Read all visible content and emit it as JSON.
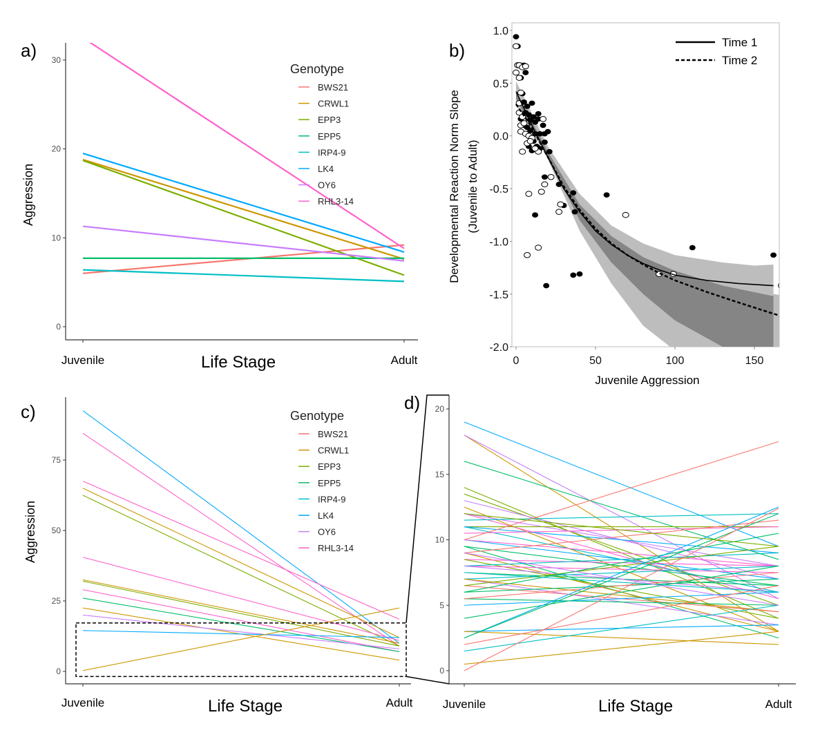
{
  "palette": [
    "#F8766D",
    "#CD9600",
    "#7CAE00",
    "#00BE67",
    "#00BFC4",
    "#00A9FF",
    "#C77CFF",
    "#FF61CC"
  ],
  "chart_data": [
    {
      "panel_label": "a)",
      "type": "line",
      "xlabel": "Life Stage",
      "ylabel": "Aggression",
      "categories": [
        "Juvenile",
        "Adult"
      ],
      "yticks": [
        0,
        10,
        20,
        30
      ],
      "ylim": [
        -1.2,
        31.5
      ],
      "legend_title": "Genotype",
      "legend_position": "top-right",
      "series": [
        {
          "name": "BWS21",
          "values": [
            6.0,
            9.2
          ]
        },
        {
          "name": "CRWL1",
          "values": [
            18.8,
            7.6
          ]
        },
        {
          "name": "EPP3",
          "values": [
            18.7,
            5.8
          ]
        },
        {
          "name": "EPP5",
          "values": [
            7.7,
            7.7
          ]
        },
        {
          "name": "IRP4-9",
          "values": [
            6.4,
            5.1
          ]
        },
        {
          "name": "LK4",
          "values": [
            19.5,
            8.4
          ]
        },
        {
          "name": "OY6",
          "values": [
            11.3,
            7.4
          ]
        },
        {
          "name": "RHL3-14",
          "values": [
            32.5,
            8.8
          ]
        }
      ]
    },
    {
      "panel_label": "b)",
      "type": "scatter",
      "xlabel": "Juvenile Aggression",
      "ylabel": [
        "Developmental Reaction Norm Slope",
        "(Juvenile to Adult)"
      ],
      "xticks": [
        0,
        50,
        100,
        150
      ],
      "yticks": [
        1.0,
        0.5,
        0.0,
        -0.5,
        -1.0,
        -1.5,
        -2.0
      ],
      "xlim": [
        -3,
        165
      ],
      "ylim": [
        -2.0,
        1.07
      ],
      "legend_position": "top-right",
      "legend": [
        {
          "name": "Time 1",
          "style": "solid"
        },
        {
          "name": "Time 2",
          "style": "dashed"
        }
      ],
      "time1_points": [
        [
          0,
          0.94
        ],
        [
          0,
          0.85
        ],
        [
          1,
          0.85
        ],
        [
          1,
          0.67
        ],
        [
          3,
          0.67
        ],
        [
          5,
          0.67
        ],
        [
          3,
          0.55
        ],
        [
          6,
          0.6
        ],
        [
          4,
          0.4
        ],
        [
          5,
          0.32
        ],
        [
          7,
          0.28
        ],
        [
          10,
          0.31
        ],
        [
          6,
          0.22
        ],
        [
          8,
          0.2
        ],
        [
          9,
          0.15
        ],
        [
          11,
          0.18
        ],
        [
          12,
          0.13
        ],
        [
          14,
          0.21
        ],
        [
          14,
          0.16
        ],
        [
          3,
          0.16
        ],
        [
          5,
          0.1
        ],
        [
          7,
          0.08
        ],
        [
          9,
          0.05
        ],
        [
          12,
          0.02
        ],
        [
          15,
          0.02
        ],
        [
          18,
          0.02
        ],
        [
          17,
          0.1
        ],
        [
          20,
          0.04
        ],
        [
          11,
          -0.05
        ],
        [
          13,
          -0.1
        ],
        [
          15,
          -0.12
        ],
        [
          18,
          -0.06
        ],
        [
          21,
          -0.15
        ],
        [
          10,
          -0.14
        ],
        [
          8,
          -0.1
        ],
        [
          18,
          -0.39
        ],
        [
          27,
          -0.46
        ],
        [
          36,
          -0.54
        ],
        [
          57,
          -0.56
        ],
        [
          30,
          -0.66
        ],
        [
          37,
          -0.72
        ],
        [
          12,
          -0.75
        ],
        [
          111,
          -1.06
        ],
        [
          162,
          -1.13
        ],
        [
          36,
          -1.32
        ],
        [
          40,
          -1.31
        ],
        [
          19,
          -1.42
        ]
      ],
      "time2_points": [
        [
          0,
          0.85
        ],
        [
          0,
          0.6
        ],
        [
          1,
          0.67
        ],
        [
          2,
          0.67
        ],
        [
          4,
          0.65
        ],
        [
          6,
          0.66
        ],
        [
          2,
          0.55
        ],
        [
          3,
          0.41
        ],
        [
          2,
          0.31
        ],
        [
          2,
          0.22
        ],
        [
          4,
          0.18
        ],
        [
          3,
          0.1
        ],
        [
          5,
          0.12
        ],
        [
          3,
          0.04
        ],
        [
          6,
          0.02
        ],
        [
          8,
          0.0
        ],
        [
          10,
          -0.02
        ],
        [
          7,
          -0.07
        ],
        [
          9,
          -0.05
        ],
        [
          4,
          -0.15
        ],
        [
          14,
          -0.15
        ],
        [
          17,
          0.16
        ],
        [
          12,
          -0.12
        ],
        [
          22,
          -0.39
        ],
        [
          18,
          -0.46
        ],
        [
          8,
          -0.55
        ],
        [
          16,
          -0.53
        ],
        [
          28,
          -0.65
        ],
        [
          27,
          -0.72
        ],
        [
          69,
          -0.75
        ],
        [
          14,
          -1.06
        ],
        [
          7,
          -1.13
        ],
        [
          90,
          -1.31
        ],
        [
          99,
          -1.31
        ],
        [
          167,
          -1.42
        ]
      ],
      "time1_fit": [
        [
          0,
          0.42
        ],
        [
          10,
          0.1
        ],
        [
          20,
          -0.2
        ],
        [
          30,
          -0.5
        ],
        [
          40,
          -0.72
        ],
        [
          50,
          -0.9
        ],
        [
          60,
          -1.03
        ],
        [
          70,
          -1.13
        ],
        [
          80,
          -1.21
        ],
        [
          90,
          -1.27
        ],
        [
          100,
          -1.32
        ],
        [
          120,
          -1.37
        ],
        [
          140,
          -1.4
        ],
        [
          162,
          -1.42
        ]
      ],
      "time2_fit": [
        [
          0,
          0.3
        ],
        [
          10,
          0.08
        ],
        [
          20,
          -0.2
        ],
        [
          30,
          -0.48
        ],
        [
          40,
          -0.7
        ],
        [
          50,
          -0.88
        ],
        [
          60,
          -1.02
        ],
        [
          70,
          -1.13
        ],
        [
          80,
          -1.22
        ],
        [
          90,
          -1.3
        ],
        [
          100,
          -1.37
        ],
        [
          120,
          -1.48
        ],
        [
          140,
          -1.58
        ],
        [
          167,
          -1.71
        ]
      ],
      "band_outer_upper": [
        [
          0,
          0.52
        ],
        [
          20,
          -0.1
        ],
        [
          40,
          -0.55
        ],
        [
          60,
          -0.85
        ],
        [
          80,
          -1.02
        ],
        [
          100,
          -1.13
        ],
        [
          130,
          -1.2
        ],
        [
          150,
          -1.23
        ],
        [
          162,
          -1.22
        ],
        [
          162,
          -1.5
        ],
        [
          167,
          -1.51
        ],
        [
          167,
          -2.0
        ]
      ],
      "band_outer_lower": [
        [
          0,
          0.3
        ],
        [
          20,
          -0.22
        ],
        [
          40,
          -0.9
        ],
        [
          60,
          -1.4
        ],
        [
          80,
          -1.8
        ],
        [
          97,
          -2.0
        ]
      ],
      "band_inner_upper": [
        [
          0,
          0.42
        ],
        [
          20,
          -0.15
        ],
        [
          40,
          -0.65
        ],
        [
          60,
          -0.95
        ],
        [
          80,
          -1.15
        ],
        [
          100,
          -1.28
        ],
        [
          130,
          -1.42
        ],
        [
          162,
          -1.52
        ],
        [
          162,
          -2.0
        ]
      ],
      "band_inner_lower": [
        [
          0,
          0.35
        ],
        [
          20,
          -0.2
        ],
        [
          40,
          -0.8
        ],
        [
          60,
          -1.2
        ],
        [
          80,
          -1.5
        ],
        [
          100,
          -1.75
        ],
        [
          130,
          -2.0
        ]
      ]
    },
    {
      "panel_label": "c)",
      "type": "line",
      "xlabel": "Life Stage",
      "ylabel": "Aggression",
      "categories": [
        "Juvenile",
        "Adult"
      ],
      "yticks": [
        0,
        25,
        50,
        75
      ],
      "ylim": [
        -4,
        97
      ],
      "legend_title": "Genotype",
      "legend_position": "top-right",
      "legend": [
        "BWS21",
        "CRWL1",
        "EPP3",
        "EPP5",
        "IRP4-9",
        "LK4",
        "OY6",
        "RHL3-14"
      ],
      "zoom_box": [
        -1.8,
        17.2
      ],
      "lines": [
        [
          92.5,
          10,
          5
        ],
        [
          84.5,
          9,
          7
        ],
        [
          67.5,
          18.5,
          7
        ],
        [
          65,
          12,
          1
        ],
        [
          62.5,
          9,
          2
        ],
        [
          40.5,
          11,
          7
        ],
        [
          32.5,
          10,
          1
        ],
        [
          32,
          9,
          2
        ],
        [
          29,
          7,
          7
        ],
        [
          26,
          7,
          3
        ],
        [
          22.5,
          4,
          1
        ],
        [
          20,
          8,
          6
        ],
        [
          14.5,
          12,
          5
        ],
        [
          0.3,
          22.5,
          1
        ]
      ]
    },
    {
      "panel_label": "d)",
      "type": "line",
      "xlabel": "Life Stage",
      "categories": [
        "Juvenile",
        "Adult"
      ],
      "yticks": [
        0,
        5,
        10,
        15,
        20
      ],
      "ylim": [
        -1,
        21
      ],
      "lines": [
        [
          19,
          9.5,
          5
        ],
        [
          18,
          3,
          1
        ],
        [
          18,
          5.5,
          6
        ],
        [
          16,
          8.5,
          3
        ],
        [
          14,
          4,
          2
        ],
        [
          13.5,
          5,
          2
        ],
        [
          13,
          7,
          6
        ],
        [
          12.5,
          3,
          1
        ],
        [
          12,
          5.5,
          7
        ],
        [
          12,
          8,
          6
        ],
        [
          11.5,
          12,
          4
        ],
        [
          11,
          11,
          2
        ],
        [
          11,
          6,
          4
        ],
        [
          11,
          9,
          5
        ],
        [
          10.5,
          11,
          7
        ],
        [
          10,
          17.5,
          0
        ],
        [
          10,
          7,
          5
        ],
        [
          10,
          8,
          7
        ],
        [
          9.5,
          6.5,
          3
        ],
        [
          9.5,
          2.5,
          3
        ],
        [
          9,
          11.5,
          0
        ],
        [
          9,
          3,
          1
        ],
        [
          8.5,
          8,
          7
        ],
        [
          8.5,
          4,
          2
        ],
        [
          8,
          7.5,
          7
        ],
        [
          8,
          9,
          4
        ],
        [
          8,
          6,
          6
        ],
        [
          7.5,
          6.5,
          3
        ],
        [
          7,
          3.5,
          6
        ],
        [
          7,
          8,
          4
        ],
        [
          7,
          4.5,
          1
        ],
        [
          6.5,
          4.5,
          0
        ],
        [
          6.5,
          9.5,
          2
        ],
        [
          6,
          7,
          3
        ],
        [
          6,
          10.5,
          3
        ],
        [
          5.5,
          5,
          3
        ],
        [
          5.5,
          7.5,
          0
        ],
        [
          5,
          6,
          5
        ],
        [
          4,
          8,
          3
        ],
        [
          3,
          3.5,
          5
        ],
        [
          3,
          2,
          1
        ],
        [
          2.5,
          12.5,
          5
        ],
        [
          2.5,
          12,
          3
        ],
        [
          2,
          6.5,
          0
        ],
        [
          1.5,
          5,
          4
        ],
        [
          0.5,
          3,
          1
        ],
        [
          0,
          12.4,
          0
        ],
        [
          7.5,
          6,
          4
        ],
        [
          9,
          5,
          6
        ],
        [
          12,
          9.5,
          2
        ]
      ]
    }
  ]
}
